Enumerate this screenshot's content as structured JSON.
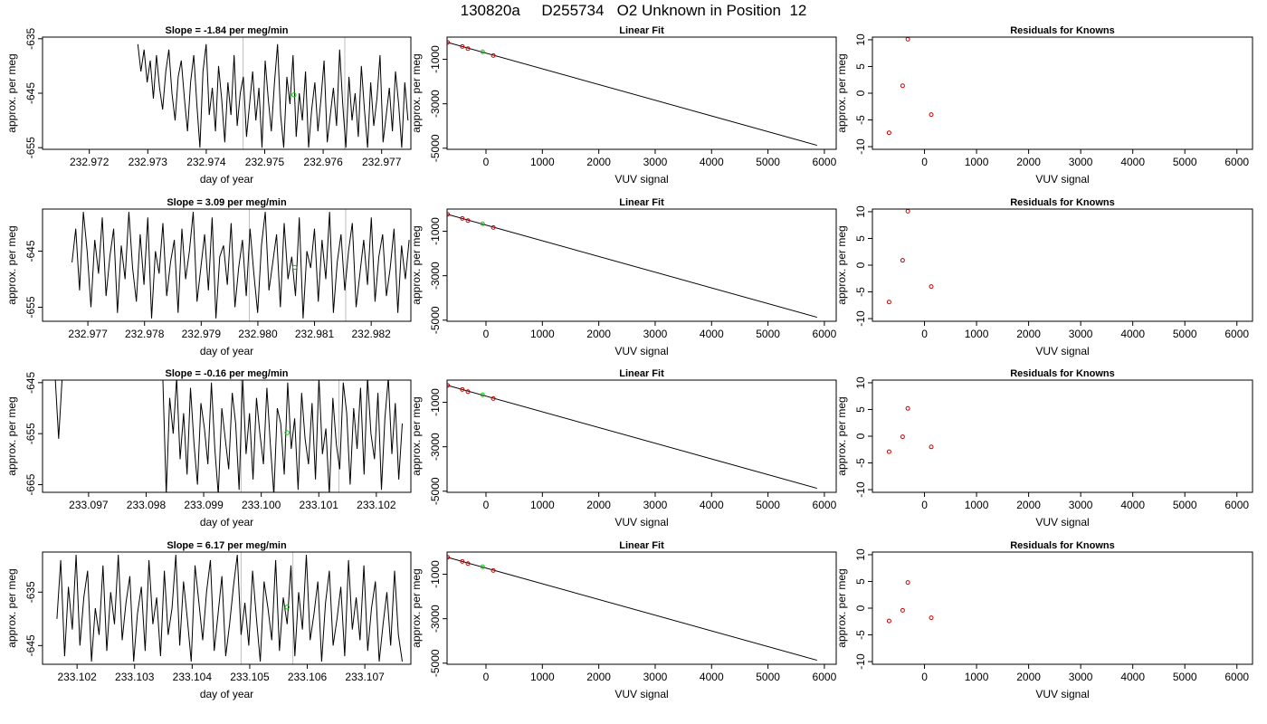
{
  "title": "130820a     D255734   O2 Unknown in Position  12",
  "colors": {
    "series": "#000000",
    "highlight": "#00cc00",
    "residual": "#cc0000",
    "guide": "#bfbfbf"
  },
  "chart_data": [
    {
      "type": "line",
      "panel": "timeseries",
      "title": "Slope =  -1.84  per meg/min",
      "xlabel": "day of year",
      "ylabel": "approx. per meg",
      "xlim": [
        232.9712,
        232.9775
      ],
      "ylim": [
        -655.3,
        -634.7
      ],
      "xticks": [
        "232.972",
        "232.973",
        "232.974",
        "232.975",
        "232.976",
        "232.977"
      ],
      "xtick_values": [
        232.972,
        232.973,
        232.974,
        232.975,
        232.976,
        232.977
      ],
      "yticks": [
        "-655",
        "-645",
        "-635"
      ],
      "ytick_values": [
        -655,
        -645,
        -635
      ],
      "x_start": 232.97283,
      "x_end": 232.97745,
      "y_values": [
        -636,
        -641,
        -637,
        -643,
        -639,
        -646,
        -638,
        -644,
        -648,
        -641,
        -637,
        -645,
        -650,
        -642,
        -639,
        -646,
        -652,
        -643,
        -638,
        -647,
        -655,
        -641,
        -636,
        -649,
        -644,
        -652,
        -640,
        -646,
        -654,
        -643,
        -649,
        -638,
        -651,
        -645,
        -642,
        -653,
        -647,
        -641,
        -650,
        -644,
        -655,
        -639,
        -646,
        -652,
        -643,
        -636,
        -649,
        -655,
        -642,
        -647,
        -638,
        -653,
        -645,
        -650,
        -641,
        -655,
        -648,
        -643,
        -652,
        -646,
        -639,
        -654,
        -649,
        -644,
        -651,
        -637,
        -647,
        -655,
        -642,
        -650,
        -645,
        -653,
        -640,
        -648,
        -655,
        -643,
        -651,
        -646,
        -638,
        -654,
        -649,
        -644,
        -652,
        -641,
        -647,
        -655,
        -643,
        -650
      ],
      "guides": [
        232.97463,
        232.97637
      ],
      "marker": {
        "x": 232.9755,
        "y": -645.3
      }
    },
    {
      "type": "scatter",
      "panel": "linear-fit",
      "title": "Linear Fit",
      "xlabel": "VUV signal",
      "ylabel": "approx. per meg",
      "xlim": [
        -690,
        6210
      ],
      "ylim": [
        -5050,
        0
      ],
      "xticks": [
        "0",
        "1000",
        "2000",
        "3000",
        "4000",
        "5000",
        "6000"
      ],
      "xtick_values": [
        0,
        1000,
        2000,
        3000,
        4000,
        5000,
        6000
      ],
      "yticks": [
        "-5000",
        "-3000",
        "-1000"
      ],
      "ytick_values": [
        -5000,
        -3000,
        -1000
      ],
      "known_points": [
        {
          "x": -680,
          "y": -240
        },
        {
          "x": -420,
          "y": -420
        },
        {
          "x": -320,
          "y": -520
        },
        {
          "x": 130,
          "y": -830
        }
      ],
      "unknown_point": {
        "x": -60,
        "y": -660
      },
      "fit_line": [
        {
          "x": -680,
          "y": -240
        },
        {
          "x": 5870,
          "y": -4870
        }
      ]
    },
    {
      "type": "scatter",
      "panel": "residuals",
      "title": "Residuals for Knowns",
      "xlabel": "VUV signal",
      "ylabel": "approx. per meg",
      "xlim": [
        -1000,
        6300
      ],
      "ylim": [
        -10.5,
        10.5
      ],
      "xticks": [
        "0",
        "1000",
        "2000",
        "3000",
        "4000",
        "5000",
        "6000"
      ],
      "xtick_values": [
        0,
        1000,
        2000,
        3000,
        4000,
        5000,
        6000
      ],
      "yticks": [
        "-10",
        "-5",
        "0",
        "5",
        "10"
      ],
      "ytick_values": [
        -10,
        -5,
        0,
        5,
        10
      ],
      "points": [
        {
          "x": -680,
          "y": -7.4
        },
        {
          "x": -420,
          "y": 1.4
        },
        {
          "x": -320,
          "y": 10.1
        },
        {
          "x": 130,
          "y": -4.0
        }
      ]
    },
    {
      "type": "line",
      "panel": "timeseries",
      "title": "Slope =  3.09  per meg/min",
      "xlabel": "day of year",
      "ylabel": "approx. per meg",
      "xlim": [
        232.9762,
        232.9827
      ],
      "ylim": [
        -657.5,
        -637.5
      ],
      "xticks": [
        "232.977",
        "232.978",
        "232.979",
        "232.980",
        "232.981",
        "232.982"
      ],
      "xtick_values": [
        232.977,
        232.978,
        232.979,
        232.98,
        232.981,
        232.982
      ],
      "yticks": [
        "-655",
        "-645"
      ],
      "ytick_values": [
        -655,
        -645
      ],
      "x_start": 232.97672,
      "x_end": 232.98267,
      "y_values": [
        -647,
        -641,
        -652,
        -638,
        -645,
        -655,
        -643,
        -649,
        -639,
        -653,
        -646,
        -641,
        -656,
        -644,
        -650,
        -638,
        -648,
        -654,
        -642,
        -651,
        -639,
        -657,
        -645,
        -649,
        -640,
        -653,
        -647,
        -643,
        -656,
        -641,
        -650,
        -645,
        -638,
        -654,
        -648,
        -642,
        -652,
        -639,
        -657,
        -646,
        -644,
        -651,
        -640,
        -655,
        -648,
        -643,
        -653,
        -641,
        -649,
        -656,
        -644,
        -638,
        -652,
        -647,
        -642,
        -655,
        -640,
        -650,
        -646,
        -653,
        -639,
        -657,
        -645,
        -648,
        -641,
        -654,
        -643,
        -650,
        -638,
        -656,
        -647,
        -642,
        -652,
        -645,
        -640,
        -655,
        -649,
        -643,
        -651,
        -639,
        -654,
        -646,
        -642,
        -653,
        -648,
        -641,
        -656,
        -644,
        -650,
        -643
      ],
      "guides": [
        232.97985,
        232.98155
      ],
      "marker": {
        "x": 232.98065,
        "y": -647.9
      }
    },
    {
      "type": "scatter",
      "panel": "linear-fit",
      "title": "Linear Fit",
      "xlabel": "VUV signal",
      "ylabel": "approx. per meg",
      "xlim": [
        -690,
        6210
      ],
      "ylim": [
        -5050,
        0
      ],
      "xticks": [
        "0",
        "1000",
        "2000",
        "3000",
        "4000",
        "5000",
        "6000"
      ],
      "xtick_values": [
        0,
        1000,
        2000,
        3000,
        4000,
        5000,
        6000
      ],
      "yticks": [
        "-5000",
        "-3000",
        "-1000"
      ],
      "ytick_values": [
        -5000,
        -3000,
        -1000
      ],
      "known_points": [
        {
          "x": -680,
          "y": -240
        },
        {
          "x": -420,
          "y": -420
        },
        {
          "x": -320,
          "y": -520
        },
        {
          "x": 130,
          "y": -830
        }
      ],
      "unknown_point": {
        "x": -60,
        "y": -660
      },
      "fit_line": [
        {
          "x": -680,
          "y": -240
        },
        {
          "x": 5870,
          "y": -4870
        }
      ]
    },
    {
      "type": "scatter",
      "panel": "residuals",
      "title": "Residuals for Knowns",
      "xlabel": "VUV signal",
      "ylabel": "approx. per meg",
      "xlim": [
        -1000,
        6300
      ],
      "ylim": [
        -10.5,
        10.5
      ],
      "xticks": [
        "0",
        "1000",
        "2000",
        "3000",
        "4000",
        "5000",
        "6000"
      ],
      "xtick_values": [
        0,
        1000,
        2000,
        3000,
        4000,
        5000,
        6000
      ],
      "yticks": [
        "-10",
        "-5",
        "0",
        "5",
        "10"
      ],
      "ytick_values": [
        -10,
        -5,
        0,
        5,
        10
      ],
      "points": [
        {
          "x": -680,
          "y": -6.9
        },
        {
          "x": -420,
          "y": 0.9
        },
        {
          "x": -320,
          "y": 10.1
        },
        {
          "x": 130,
          "y": -4.0
        }
      ]
    },
    {
      "type": "line",
      "panel": "timeseries",
      "title": "Slope =  -0.16  per meg/min",
      "xlabel": "day of year",
      "ylabel": "approx. per meg",
      "xlim": [
        233.0962,
        233.1026
      ],
      "ylim": [
        -666.5,
        -644.5
      ],
      "xticks": [
        "233.097",
        "233.098",
        "233.099",
        "233.100",
        "233.101",
        "233.102"
      ],
      "xtick_values": [
        233.097,
        233.098,
        233.099,
        233.1,
        233.101,
        233.102
      ],
      "yticks": [
        "-665",
        "-655",
        "-645"
      ],
      "ytick_values": [
        -665,
        -655,
        -645
      ],
      "x_start": 233.09642,
      "x_end": 233.10245,
      "y_values": [
        -644,
        -656,
        -644,
        -644,
        -644,
        -644,
        -644,
        -644,
        -644,
        -644,
        -644,
        -644,
        -644,
        -644,
        -644,
        -644,
        -644,
        -644,
        -644,
        -644,
        -644,
        -644,
        -644,
        -644,
        -644,
        -644,
        -644,
        -644,
        -644,
        -644,
        -644,
        -644,
        -667,
        -648,
        -655,
        -644,
        -660,
        -651,
        -663,
        -646,
        -657,
        -665,
        -649,
        -654,
        -661,
        -645,
        -658,
        -667,
        -650,
        -656,
        -662,
        -647,
        -653,
        -666,
        -644,
        -659,
        -651,
        -664,
        -648,
        -655,
        -661,
        -646,
        -657,
        -667,
        -650,
        -653,
        -663,
        -645,
        -658,
        -652,
        -666,
        -647,
        -656,
        -661,
        -649,
        -664,
        -644,
        -659,
        -654,
        -667,
        -648,
        -657,
        -662,
        -645,
        -651,
        -665,
        -650,
        -658,
        -646,
        -663,
        -644,
        -655,
        -660,
        -647,
        -666,
        -652,
        -644,
        -659,
        -649,
        -664,
        -653
      ],
      "guides": [
        233.09965,
        233.10135
      ],
      "marker": {
        "x": 233.10045,
        "y": -654.8
      }
    },
    {
      "type": "scatter",
      "panel": "linear-fit",
      "title": "Linear Fit",
      "xlabel": "VUV signal",
      "ylabel": "approx. per meg",
      "xlim": [
        -690,
        6210
      ],
      "ylim": [
        -5050,
        0
      ],
      "xticks": [
        "0",
        "1000",
        "2000",
        "3000",
        "4000",
        "5000",
        "6000"
      ],
      "xtick_values": [
        0,
        1000,
        2000,
        3000,
        4000,
        5000,
        6000
      ],
      "yticks": [
        "-5000",
        "-3000",
        "-1000"
      ],
      "ytick_values": [
        -5000,
        -3000,
        -1000
      ],
      "known_points": [
        {
          "x": -680,
          "y": -240
        },
        {
          "x": -420,
          "y": -420
        },
        {
          "x": -320,
          "y": -520
        },
        {
          "x": 130,
          "y": -830
        }
      ],
      "unknown_point": {
        "x": -60,
        "y": -660
      },
      "fit_line": [
        {
          "x": -680,
          "y": -240
        },
        {
          "x": 5870,
          "y": -4870
        }
      ]
    },
    {
      "type": "scatter",
      "panel": "residuals",
      "title": "Residuals for Knowns",
      "xlabel": "VUV signal",
      "ylabel": "approx. per meg",
      "xlim": [
        -1000,
        6300
      ],
      "ylim": [
        -10.5,
        10.5
      ],
      "xticks": [
        "0",
        "1000",
        "2000",
        "3000",
        "4000",
        "5000",
        "6000"
      ],
      "xtick_values": [
        0,
        1000,
        2000,
        3000,
        4000,
        5000,
        6000
      ],
      "yticks": [
        "-10",
        "-5",
        "0",
        "5",
        "10"
      ],
      "ytick_values": [
        -10,
        -5,
        0,
        5,
        10
      ],
      "points": [
        {
          "x": -680,
          "y": -2.9
        },
        {
          "x": -420,
          "y": -0.1
        },
        {
          "x": -320,
          "y": 5.2
        },
        {
          "x": 130,
          "y": -2.0
        }
      ]
    },
    {
      "type": "line",
      "panel": "timeseries",
      "title": "Slope =  6.17  per meg/min",
      "xlabel": "day of year",
      "ylabel": "approx. per meg",
      "xlim": [
        233.1014,
        233.1078
      ],
      "ylim": [
        -648.5,
        -627.5
      ],
      "xticks": [
        "233.102",
        "233.103",
        "233.104",
        "233.105",
        "233.106",
        "233.107"
      ],
      "xtick_values": [
        233.102,
        233.103,
        233.104,
        233.105,
        233.106,
        233.107
      ],
      "yticks": [
        "-645",
        "-635"
      ],
      "ytick_values": [
        -645,
        -635
      ],
      "x_start": 233.10165,
      "x_end": 233.10765,
      "y_values": [
        -640,
        -629,
        -647,
        -634,
        -642,
        -628,
        -645,
        -636,
        -631,
        -648,
        -638,
        -643,
        -630,
        -646,
        -635,
        -641,
        -628,
        -644,
        -637,
        -632,
        -648,
        -639,
        -634,
        -646,
        -629,
        -641,
        -636,
        -647,
        -631,
        -643,
        -638,
        -628,
        -645,
        -633,
        -640,
        -648,
        -630,
        -637,
        -644,
        -635,
        -629,
        -646,
        -639,
        -632,
        -647,
        -641,
        -634,
        -628,
        -643,
        -637,
        -645,
        -631,
        -640,
        -648,
        -633,
        -638,
        -644,
        -629,
        -646,
        -636,
        -641,
        -630,
        -647,
        -635,
        -642,
        -628,
        -644,
        -639,
        -633,
        -648,
        -637,
        -631,
        -645,
        -640,
        -634,
        -647,
        -629,
        -642,
        -636,
        -644,
        -630,
        -646,
        -638,
        -633,
        -648,
        -641,
        -635,
        -645,
        -631,
        -643,
        -648
      ],
      "guides": [
        233.10485,
        233.10575
      ],
      "marker": {
        "x": 233.10565,
        "y": -637.8
      }
    },
    {
      "type": "scatter",
      "panel": "linear-fit",
      "title": "Linear Fit",
      "xlabel": "VUV signal",
      "ylabel": "approx. per meg",
      "xlim": [
        -690,
        6210
      ],
      "ylim": [
        -5050,
        0
      ],
      "xticks": [
        "0",
        "1000",
        "2000",
        "3000",
        "4000",
        "5000",
        "6000"
      ],
      "xtick_values": [
        0,
        1000,
        2000,
        3000,
        4000,
        5000,
        6000
      ],
      "yticks": [
        "-5000",
        "-3000",
        "-1000"
      ],
      "ytick_values": [
        -5000,
        -3000,
        -1000
      ],
      "known_points": [
        {
          "x": -680,
          "y": -240
        },
        {
          "x": -420,
          "y": -420
        },
        {
          "x": -320,
          "y": -520
        },
        {
          "x": 130,
          "y": -830
        }
      ],
      "unknown_point": {
        "x": -60,
        "y": -660
      },
      "fit_line": [
        {
          "x": -680,
          "y": -240
        },
        {
          "x": 5870,
          "y": -4870
        }
      ]
    },
    {
      "type": "scatter",
      "panel": "residuals",
      "title": "Residuals for Knowns",
      "xlabel": "VUV signal",
      "ylabel": "approx. per meg",
      "xlim": [
        -1000,
        6300
      ],
      "ylim": [
        -10.5,
        10.5
      ],
      "xticks": [
        "0",
        "1000",
        "2000",
        "3000",
        "4000",
        "5000",
        "6000"
      ],
      "xtick_values": [
        0,
        1000,
        2000,
        3000,
        4000,
        5000,
        6000
      ],
      "yticks": [
        "-10",
        "-5",
        "0",
        "5",
        "10"
      ],
      "ytick_values": [
        -10,
        -5,
        0,
        5,
        10
      ],
      "points": [
        {
          "x": -680,
          "y": -2.4
        },
        {
          "x": -420,
          "y": -0.4
        },
        {
          "x": -320,
          "y": 4.8
        },
        {
          "x": 130,
          "y": -1.8
        }
      ]
    }
  ]
}
